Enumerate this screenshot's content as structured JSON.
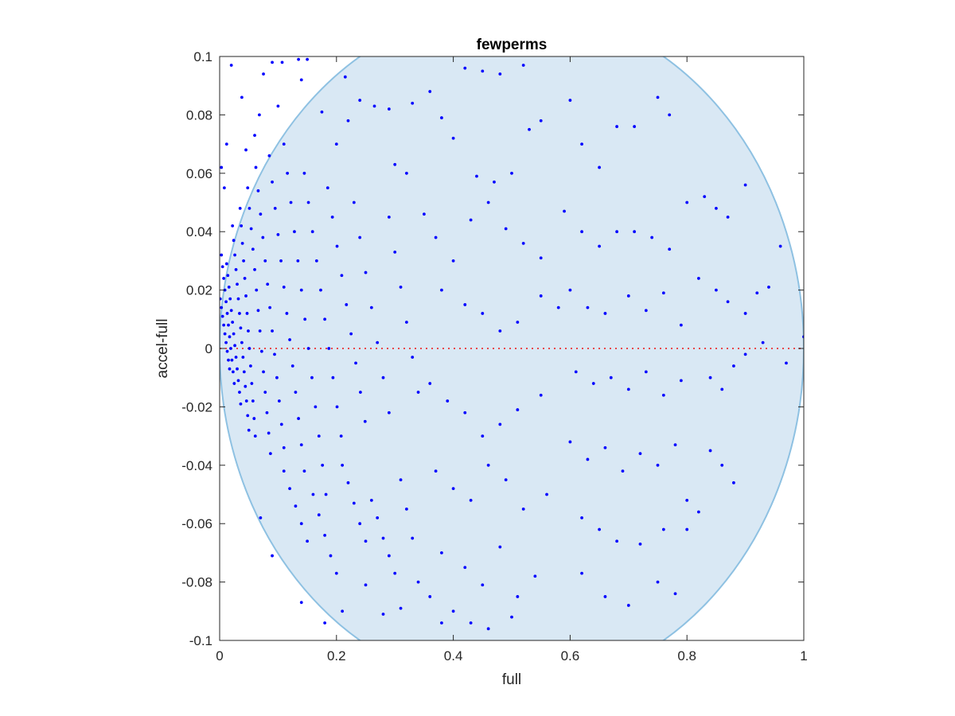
{
  "chart_data": {
    "type": "scatter",
    "title": "fewperms",
    "xlabel": "full",
    "ylabel": "accel-full",
    "xlim": [
      0,
      1
    ],
    "ylim": [
      -0.1,
      0.1
    ],
    "xticks": [
      0,
      0.2,
      0.4,
      0.6,
      0.8,
      1
    ],
    "xtick_labels": [
      "0",
      "0.2",
      "0.4",
      "0.6",
      "0.8",
      "1"
    ],
    "yticks": [
      -0.1,
      -0.08,
      -0.06,
      -0.04,
      -0.02,
      0,
      0.02,
      0.04,
      0.06,
      0.08,
      0.1
    ],
    "ytick_labels": [
      "-0.1",
      "-0.08",
      "-0.06",
      "-0.04",
      "-0.02",
      "0",
      "0.02",
      "0.04",
      "0.06",
      "0.08",
      "0.1"
    ],
    "grid": false,
    "reference_line": {
      "y": 0,
      "style": "dotted",
      "color": "#e8474a"
    },
    "region": {
      "shape": "ellipse",
      "center": [
        0.5,
        0
      ],
      "semi_axes": [
        0.5,
        0.117
      ],
      "fill": "#d9e8f4",
      "stroke": "#8ec1e2"
    },
    "marker_color": "#0000ff",
    "points": [
      [
        0.001,
        0.017
      ],
      [
        0.003,
        0.014
      ],
      [
        0.005,
        0.011
      ],
      [
        0.007,
        0.008
      ],
      [
        0.009,
        0.005
      ],
      [
        0.011,
        0.002
      ],
      [
        0.013,
        -0.001
      ],
      [
        0.015,
        -0.004
      ],
      [
        0.017,
        -0.007
      ],
      [
        0.003,
        0.032
      ],
      [
        0.005,
        0.028
      ],
      [
        0.007,
        0.024
      ],
      [
        0.009,
        0.02
      ],
      [
        0.011,
        0.016
      ],
      [
        0.013,
        0.012
      ],
      [
        0.015,
        0.008
      ],
      [
        0.017,
        0.004
      ],
      [
        0.019,
        0.0
      ],
      [
        0.021,
        -0.004
      ],
      [
        0.023,
        -0.008
      ],
      [
        0.025,
        -0.012
      ],
      [
        0.012,
        0.029
      ],
      [
        0.014,
        0.025
      ],
      [
        0.016,
        0.021
      ],
      [
        0.018,
        0.017
      ],
      [
        0.02,
        0.013
      ],
      [
        0.022,
        0.009
      ],
      [
        0.024,
        0.005
      ],
      [
        0.026,
        0.001
      ],
      [
        0.028,
        -0.003
      ],
      [
        0.03,
        -0.007
      ],
      [
        0.032,
        -0.011
      ],
      [
        0.034,
        -0.015
      ],
      [
        0.036,
        -0.019
      ],
      [
        0.022,
        0.042
      ],
      [
        0.024,
        0.037
      ],
      [
        0.026,
        0.032
      ],
      [
        0.028,
        0.027
      ],
      [
        0.03,
        0.022
      ],
      [
        0.032,
        0.017
      ],
      [
        0.034,
        0.012
      ],
      [
        0.036,
        0.007
      ],
      [
        0.038,
        0.002
      ],
      [
        0.04,
        -0.003
      ],
      [
        0.042,
        -0.008
      ],
      [
        0.044,
        -0.013
      ],
      [
        0.046,
        -0.018
      ],
      [
        0.048,
        -0.023
      ],
      [
        0.05,
        -0.028
      ],
      [
        0.035,
        0.048
      ],
      [
        0.037,
        0.042
      ],
      [
        0.039,
        0.036
      ],
      [
        0.041,
        0.03
      ],
      [
        0.043,
        0.024
      ],
      [
        0.045,
        0.018
      ],
      [
        0.047,
        0.012
      ],
      [
        0.049,
        0.006
      ],
      [
        0.051,
        0.0
      ],
      [
        0.053,
        -0.006
      ],
      [
        0.055,
        -0.012
      ],
      [
        0.057,
        -0.018
      ],
      [
        0.059,
        -0.024
      ],
      [
        0.061,
        -0.03
      ],
      [
        0.048,
        0.055
      ],
      [
        0.051,
        0.048
      ],
      [
        0.054,
        0.041
      ],
      [
        0.057,
        0.034
      ],
      [
        0.06,
        0.027
      ],
      [
        0.063,
        0.02
      ],
      [
        0.066,
        0.013
      ],
      [
        0.069,
        0.006
      ],
      [
        0.072,
        -0.001
      ],
      [
        0.075,
        -0.008
      ],
      [
        0.078,
        -0.015
      ],
      [
        0.081,
        -0.022
      ],
      [
        0.084,
        -0.029
      ],
      [
        0.087,
        -0.036
      ],
      [
        0.062,
        0.062
      ],
      [
        0.066,
        0.054
      ],
      [
        0.07,
        0.046
      ],
      [
        0.074,
        0.038
      ],
      [
        0.078,
        0.03
      ],
      [
        0.082,
        0.022
      ],
      [
        0.086,
        0.014
      ],
      [
        0.09,
        0.006
      ],
      [
        0.094,
        -0.002
      ],
      [
        0.098,
        -0.01
      ],
      [
        0.102,
        -0.018
      ],
      [
        0.106,
        -0.026
      ],
      [
        0.11,
        -0.034
      ],
      [
        0.085,
        0.066
      ],
      [
        0.09,
        0.057
      ],
      [
        0.095,
        0.048
      ],
      [
        0.1,
        0.039
      ],
      [
        0.105,
        0.03
      ],
      [
        0.11,
        0.021
      ],
      [
        0.115,
        0.012
      ],
      [
        0.12,
        0.003
      ],
      [
        0.125,
        -0.006
      ],
      [
        0.13,
        -0.015
      ],
      [
        0.135,
        -0.024
      ],
      [
        0.14,
        -0.033
      ],
      [
        0.145,
        -0.042
      ],
      [
        0.11,
        0.07
      ],
      [
        0.116,
        0.06
      ],
      [
        0.122,
        0.05
      ],
      [
        0.128,
        0.04
      ],
      [
        0.134,
        0.03
      ],
      [
        0.14,
        0.02
      ],
      [
        0.146,
        0.01
      ],
      [
        0.152,
        0.0
      ],
      [
        0.158,
        -0.01
      ],
      [
        0.164,
        -0.02
      ],
      [
        0.17,
        -0.03
      ],
      [
        0.176,
        -0.04
      ],
      [
        0.182,
        -0.05
      ],
      [
        0.145,
        0.06
      ],
      [
        0.152,
        0.05
      ],
      [
        0.159,
        0.04
      ],
      [
        0.166,
        0.03
      ],
      [
        0.173,
        0.02
      ],
      [
        0.18,
        0.01
      ],
      [
        0.187,
        0.0
      ],
      [
        0.194,
        -0.01
      ],
      [
        0.201,
        -0.02
      ],
      [
        0.208,
        -0.03
      ],
      [
        0.185,
        0.055
      ],
      [
        0.193,
        0.045
      ],
      [
        0.201,
        0.035
      ],
      [
        0.209,
        0.025
      ],
      [
        0.217,
        0.015
      ],
      [
        0.225,
        0.005
      ],
      [
        0.233,
        -0.005
      ],
      [
        0.241,
        -0.015
      ],
      [
        0.249,
        -0.025
      ],
      [
        0.23,
        0.05
      ],
      [
        0.24,
        0.038
      ],
      [
        0.25,
        0.026
      ],
      [
        0.26,
        0.014
      ],
      [
        0.27,
        0.002
      ],
      [
        0.28,
        -0.01
      ],
      [
        0.29,
        -0.022
      ],
      [
        0.29,
        0.045
      ],
      [
        0.3,
        0.033
      ],
      [
        0.31,
        0.021
      ],
      [
        0.32,
        0.009
      ],
      [
        0.33,
        -0.003
      ],
      [
        0.34,
        -0.015
      ],
      [
        0.003,
        0.062
      ],
      [
        0.008,
        0.055
      ],
      [
        0.012,
        0.07
      ],
      [
        0.02,
        0.097
      ],
      [
        0.038,
        0.086
      ],
      [
        0.045,
        0.068
      ],
      [
        0.06,
        0.073
      ],
      [
        0.075,
        0.094
      ],
      [
        0.09,
        0.098
      ],
      [
        0.107,
        0.098
      ],
      [
        0.135,
        0.099
      ],
      [
        0.15,
        0.099
      ],
      [
        0.068,
        0.08
      ],
      [
        0.1,
        0.083
      ],
      [
        0.14,
        0.092
      ],
      [
        0.175,
        0.081
      ],
      [
        0.2,
        0.07
      ],
      [
        0.215,
        0.093
      ],
      [
        0.22,
        0.078
      ],
      [
        0.24,
        0.085
      ],
      [
        0.265,
        0.083
      ],
      [
        0.29,
        0.082
      ],
      [
        0.3,
        0.063
      ],
      [
        0.32,
        0.06
      ],
      [
        0.33,
        0.084
      ],
      [
        0.36,
        0.088
      ],
      [
        0.38,
        0.079
      ],
      [
        0.42,
        0.096
      ],
      [
        0.45,
        0.095
      ],
      [
        0.48,
        0.094
      ],
      [
        0.52,
        0.097
      ],
      [
        0.4,
        0.072
      ],
      [
        0.44,
        0.059
      ],
      [
        0.47,
        0.057
      ],
      [
        0.5,
        0.06
      ],
      [
        0.53,
        0.075
      ],
      [
        0.55,
        0.078
      ],
      [
        0.35,
        0.046
      ],
      [
        0.37,
        0.038
      ],
      [
        0.4,
        0.03
      ],
      [
        0.43,
        0.044
      ],
      [
        0.46,
        0.05
      ],
      [
        0.49,
        0.041
      ],
      [
        0.52,
        0.036
      ],
      [
        0.55,
        0.031
      ],
      [
        0.38,
        0.02
      ],
      [
        0.42,
        0.015
      ],
      [
        0.45,
        0.012
      ],
      [
        0.48,
        0.006
      ],
      [
        0.51,
        0.009
      ],
      [
        0.55,
        0.018
      ],
      [
        0.58,
        0.014
      ],
      [
        0.36,
        -0.012
      ],
      [
        0.39,
        -0.018
      ],
      [
        0.42,
        -0.022
      ],
      [
        0.45,
        -0.03
      ],
      [
        0.48,
        -0.026
      ],
      [
        0.51,
        -0.021
      ],
      [
        0.55,
        -0.016
      ],
      [
        0.37,
        -0.042
      ],
      [
        0.4,
        -0.048
      ],
      [
        0.43,
        -0.052
      ],
      [
        0.46,
        -0.04
      ],
      [
        0.49,
        -0.045
      ],
      [
        0.52,
        -0.055
      ],
      [
        0.56,
        -0.05
      ],
      [
        0.38,
        -0.07
      ],
      [
        0.42,
        -0.075
      ],
      [
        0.45,
        -0.081
      ],
      [
        0.48,
        -0.068
      ],
      [
        0.51,
        -0.085
      ],
      [
        0.54,
        -0.078
      ],
      [
        0.4,
        -0.09
      ],
      [
        0.43,
        -0.094
      ],
      [
        0.46,
        -0.096
      ],
      [
        0.5,
        -0.092
      ],
      [
        0.6,
        0.085
      ],
      [
        0.62,
        0.07
      ],
      [
        0.65,
        0.062
      ],
      [
        0.68,
        0.076
      ],
      [
        0.71,
        0.076
      ],
      [
        0.75,
        0.086
      ],
      [
        0.77,
        0.08
      ],
      [
        0.59,
        0.047
      ],
      [
        0.62,
        0.04
      ],
      [
        0.65,
        0.035
      ],
      [
        0.68,
        0.04
      ],
      [
        0.71,
        0.04
      ],
      [
        0.74,
        0.038
      ],
      [
        0.77,
        0.034
      ],
      [
        0.6,
        0.02
      ],
      [
        0.63,
        0.014
      ],
      [
        0.66,
        0.012
      ],
      [
        0.7,
        0.018
      ],
      [
        0.73,
        0.013
      ],
      [
        0.76,
        0.019
      ],
      [
        0.79,
        0.008
      ],
      [
        0.61,
        -0.008
      ],
      [
        0.64,
        -0.012
      ],
      [
        0.67,
        -0.01
      ],
      [
        0.7,
        -0.014
      ],
      [
        0.73,
        -0.008
      ],
      [
        0.76,
        -0.016
      ],
      [
        0.79,
        -0.011
      ],
      [
        0.6,
        -0.032
      ],
      [
        0.63,
        -0.038
      ],
      [
        0.66,
        -0.034
      ],
      [
        0.69,
        -0.042
      ],
      [
        0.72,
        -0.036
      ],
      [
        0.75,
        -0.04
      ],
      [
        0.78,
        -0.033
      ],
      [
        0.62,
        -0.058
      ],
      [
        0.65,
        -0.062
      ],
      [
        0.68,
        -0.066
      ],
      [
        0.72,
        -0.067
      ],
      [
        0.76,
        -0.062
      ],
      [
        0.8,
        -0.052
      ],
      [
        0.62,
        -0.077
      ],
      [
        0.66,
        -0.085
      ],
      [
        0.7,
        -0.088
      ],
      [
        0.75,
        -0.08
      ],
      [
        0.78,
        -0.084
      ],
      [
        0.8,
        0.05
      ],
      [
        0.83,
        0.052
      ],
      [
        0.85,
        0.048
      ],
      [
        0.87,
        0.045
      ],
      [
        0.9,
        0.056
      ],
      [
        0.82,
        0.024
      ],
      [
        0.85,
        0.02
      ],
      [
        0.87,
        0.016
      ],
      [
        0.9,
        0.012
      ],
      [
        0.92,
        0.019
      ],
      [
        0.94,
        0.021
      ],
      [
        0.96,
        0.035
      ],
      [
        0.84,
        -0.01
      ],
      [
        0.86,
        -0.014
      ],
      [
        0.88,
        -0.006
      ],
      [
        0.9,
        -0.002
      ],
      [
        0.93,
        0.002
      ],
      [
        0.97,
        -0.005
      ],
      [
        1.0,
        0.004
      ],
      [
        0.84,
        -0.035
      ],
      [
        0.86,
        -0.04
      ],
      [
        0.88,
        -0.046
      ],
      [
        0.82,
        -0.056
      ],
      [
        0.8,
        -0.062
      ],
      [
        0.11,
        -0.042
      ],
      [
        0.12,
        -0.048
      ],
      [
        0.13,
        -0.054
      ],
      [
        0.14,
        -0.06
      ],
      [
        0.15,
        -0.066
      ],
      [
        0.16,
        -0.05
      ],
      [
        0.17,
        -0.057
      ],
      [
        0.18,
        -0.064
      ],
      [
        0.19,
        -0.071
      ],
      [
        0.2,
        -0.077
      ],
      [
        0.21,
        -0.04
      ],
      [
        0.22,
        -0.046
      ],
      [
        0.23,
        -0.053
      ],
      [
        0.24,
        -0.06
      ],
      [
        0.25,
        -0.066
      ],
      [
        0.26,
        -0.052
      ],
      [
        0.27,
        -0.058
      ],
      [
        0.28,
        -0.065
      ],
      [
        0.29,
        -0.071
      ],
      [
        0.3,
        -0.077
      ],
      [
        0.31,
        -0.045
      ],
      [
        0.32,
        -0.055
      ],
      [
        0.33,
        -0.065
      ],
      [
        0.34,
        -0.08
      ],
      [
        0.07,
        -0.058
      ],
      [
        0.09,
        -0.071
      ],
      [
        0.14,
        -0.087
      ],
      [
        0.18,
        -0.094
      ],
      [
        0.21,
        -0.09
      ],
      [
        0.25,
        -0.081
      ],
      [
        0.28,
        -0.091
      ],
      [
        0.31,
        -0.089
      ],
      [
        0.36,
        -0.085
      ],
      [
        0.38,
        -0.094
      ]
    ]
  }
}
